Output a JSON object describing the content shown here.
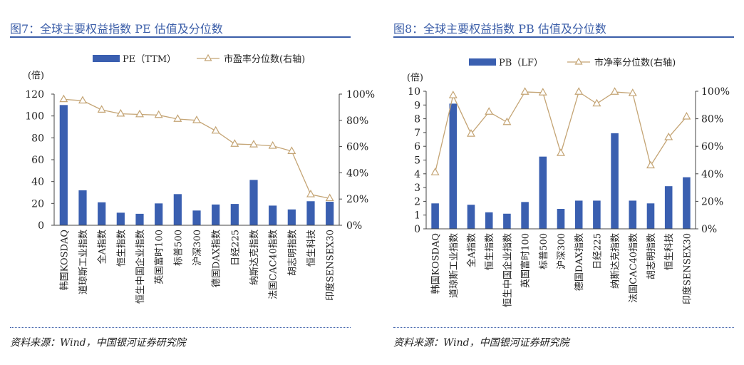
{
  "colors": {
    "bar": "#3a5fb0",
    "line": "#c4a474",
    "title": "#3a5da8"
  },
  "panels": [
    {
      "figure_title": "图7：全球主要权益指数 PE 估值及分位数",
      "source": "资料来源：Wind，中国银河证券研究院"
    },
    {
      "figure_title": "图8：全球主要权益指数 PB 估值及分位数",
      "source": "资料来源：Wind，中国银河证券研究院"
    }
  ],
  "chart_data": [
    {
      "type": "bar",
      "categories": [
        "韩国KOSDAQ",
        "道琼斯工业指数",
        "全A指数",
        "恒生指数",
        "恒生中国企业指数",
        "英国富时100",
        "标普500",
        "沪深300",
        "德国DAX指数",
        "日经225",
        "纳斯达克指数",
        "法国CAC40指数",
        "胡志明指数",
        "恒生科技",
        "印度SENSEX30"
      ],
      "series": [
        {
          "name": "PE（TTM）",
          "type": "bar",
          "axis": "left",
          "values": [
            110,
            32,
            21,
            11.5,
            10.5,
            20,
            28.5,
            13.5,
            19,
            19.5,
            41.5,
            18,
            14.5,
            22,
            21.5
          ]
        },
        {
          "name": "市盈率分位数(右轴)",
          "type": "line",
          "axis": "right",
          "values": [
            0.96,
            0.95,
            0.88,
            0.85,
            0.845,
            0.84,
            0.81,
            0.8,
            0.72,
            0.62,
            0.615,
            0.605,
            0.565,
            0.235,
            0.205
          ]
        }
      ],
      "ylabel": "(倍)",
      "ylim": [
        0,
        120
      ],
      "yticks": [
        "0",
        "20",
        "40",
        "60",
        "80",
        "100",
        "120"
      ],
      "y2lim": [
        0,
        1
      ],
      "y2ticks": [
        "0%",
        "20%",
        "40%",
        "60%",
        "80%",
        "100%"
      ],
      "legend_position": "top"
    },
    {
      "type": "bar",
      "categories": [
        "韩国KOSDAQ",
        "道琼斯工业指数",
        "全A指数",
        "恒生指数",
        "恒生中国企业指数",
        "英国富时100",
        "标普500",
        "沪深300",
        "德国DAX指数",
        "日经225",
        "纳斯达克指数",
        "法国CAC40指数",
        "胡志明指数",
        "恒生科技",
        "印度SENSEX30"
      ],
      "series": [
        {
          "name": "PB（LF）",
          "type": "bar",
          "axis": "left",
          "values": [
            1.85,
            9.1,
            1.75,
            1.2,
            1.1,
            1.95,
            5.25,
            1.45,
            2.05,
            2.05,
            6.95,
            2.05,
            1.85,
            3.1,
            3.75
          ]
        },
        {
          "name": "市净率分位数(右轴)",
          "type": "line",
          "axis": "right",
          "values": [
            0.41,
            0.97,
            0.69,
            0.85,
            0.775,
            0.995,
            0.99,
            0.55,
            0.995,
            0.91,
            0.995,
            0.985,
            0.46,
            0.665,
            0.815
          ]
        }
      ],
      "ylabel": "(倍)",
      "ylim": [
        0,
        10
      ],
      "yticks": [
        "0",
        "1",
        "2",
        "3",
        "4",
        "5",
        "6",
        "7",
        "8",
        "9",
        "10"
      ],
      "y2lim": [
        0,
        1
      ],
      "y2ticks": [
        "0%",
        "20%",
        "40%",
        "60%",
        "80%",
        "100%"
      ],
      "legend_position": "top"
    }
  ]
}
